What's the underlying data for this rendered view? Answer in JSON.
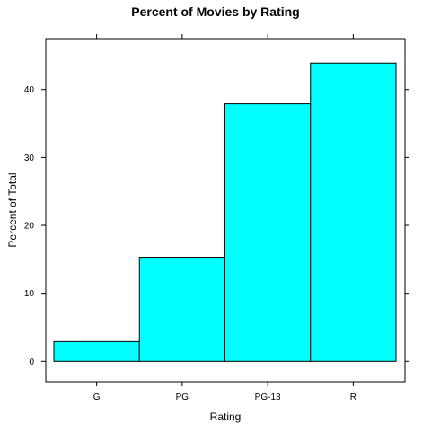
{
  "chart_data": {
    "type": "bar",
    "title": "Percent of Movies by Rating",
    "xlabel": "Rating",
    "ylabel": "Percent of Total",
    "categories": [
      "G",
      "PG",
      "PG-13",
      "R"
    ],
    "values": [
      2.9,
      15.3,
      37.9,
      43.9
    ],
    "ylim": [
      -3,
      47.5
    ],
    "yticks": [
      0,
      10,
      20,
      30,
      40
    ],
    "grid": false,
    "colors": {
      "bar_fill": "#00FFFF",
      "bar_stroke": "#000000",
      "axis": "#000000"
    }
  }
}
